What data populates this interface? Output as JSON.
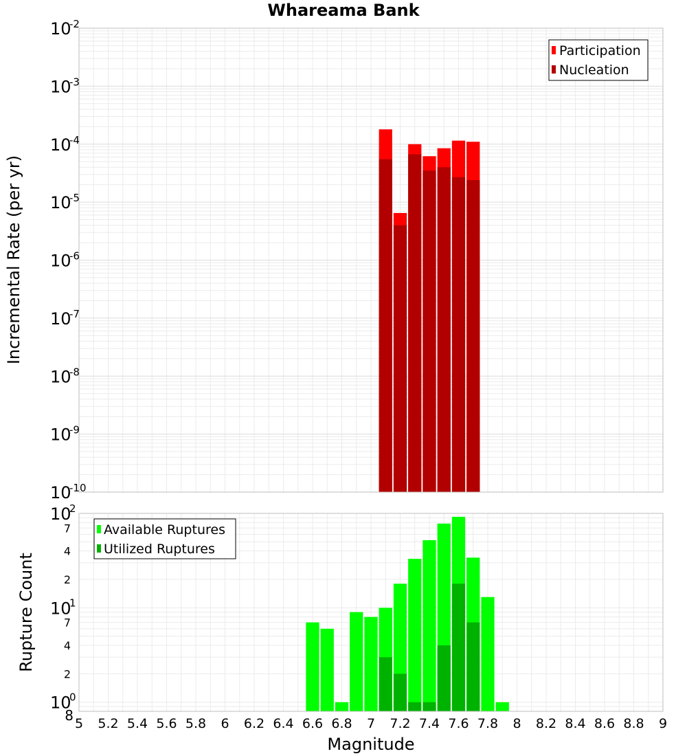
{
  "chart_data": [
    {
      "type": "bar",
      "title": "Whareama Bank",
      "ylabel": "Incremental Rate (per yr)",
      "yscale": "log",
      "ylim": [
        1e-10,
        0.01
      ],
      "xlim": [
        5,
        9
      ],
      "y_ticks": [
        {
          "base": "10",
          "exp": "-2"
        },
        {
          "base": "10",
          "exp": "-3"
        },
        {
          "base": "10",
          "exp": "-4"
        },
        {
          "base": "10",
          "exp": "-5"
        },
        {
          "base": "10",
          "exp": "-6"
        },
        {
          "base": "10",
          "exp": "-7"
        },
        {
          "base": "10",
          "exp": "-8"
        },
        {
          "base": "10",
          "exp": "-9"
        },
        {
          "base": "10",
          "exp": "-10"
        }
      ],
      "legend_position": "top-right",
      "legend": [
        {
          "label": "Participation",
          "color": "#ff0000"
        },
        {
          "label": "Nucleation",
          "color": "#b20000"
        }
      ],
      "x": [
        7.1,
        7.2,
        7.3,
        7.4,
        7.5,
        7.6,
        7.7
      ],
      "series": [
        {
          "name": "Participation",
          "color": "#ff0000",
          "values": [
            0.00018,
            6.5e-06,
            0.0001,
            6.2e-05,
            8.5e-05,
            0.000115,
            0.00011
          ]
        },
        {
          "name": "Nucleation",
          "color": "#b20000",
          "values": [
            5.5e-05,
            4e-06,
            6.7e-05,
            3.5e-05,
            4e-05,
            2.7e-05,
            2.4e-05
          ]
        }
      ]
    },
    {
      "type": "bar",
      "ylabel": "Rupture Count",
      "xlabel": "Magnitude",
      "yscale": "log",
      "ylim": [
        0.8,
        100
      ],
      "xlim": [
        5,
        9
      ],
      "x_ticks": [
        "5",
        "5.2",
        "5.4",
        "5.6",
        "5.8",
        "6",
        "6.2",
        "6.4",
        "6.6",
        "6.8",
        "7",
        "7.2",
        "7.4",
        "7.6",
        "7.8",
        "8",
        "8.2",
        "8.4",
        "8.6",
        "8.8",
        "9"
      ],
      "y_major_ticks": [
        {
          "base": "10",
          "exp": "2"
        },
        {
          "base": "10",
          "exp": "1"
        },
        {
          "base": "10",
          "exp": "0"
        }
      ],
      "y_minor_ticks": [
        "7",
        "4",
        "2",
        "7",
        "4",
        "2",
        "8"
      ],
      "legend_position": "top-left",
      "legend": [
        {
          "label": "Available Ruptures",
          "color": "#00ff00"
        },
        {
          "label": "Utilized Ruptures",
          "color": "#00b200"
        }
      ],
      "x": [
        6.6,
        6.7,
        6.8,
        6.9,
        7.0,
        7.1,
        7.2,
        7.3,
        7.4,
        7.5,
        7.6,
        7.7,
        7.8,
        7.9
      ],
      "series": [
        {
          "name": "Available Ruptures",
          "color": "#00ff00",
          "values": [
            7,
            6,
            1,
            9,
            8,
            10,
            18,
            33,
            52,
            78,
            92,
            34,
            13,
            1
          ]
        },
        {
          "name": "Utilized Ruptures",
          "color": "#00b200",
          "values": [
            0,
            0,
            0,
            0,
            0,
            3,
            2,
            1,
            1,
            4,
            18,
            7,
            0,
            0
          ]
        }
      ]
    }
  ]
}
